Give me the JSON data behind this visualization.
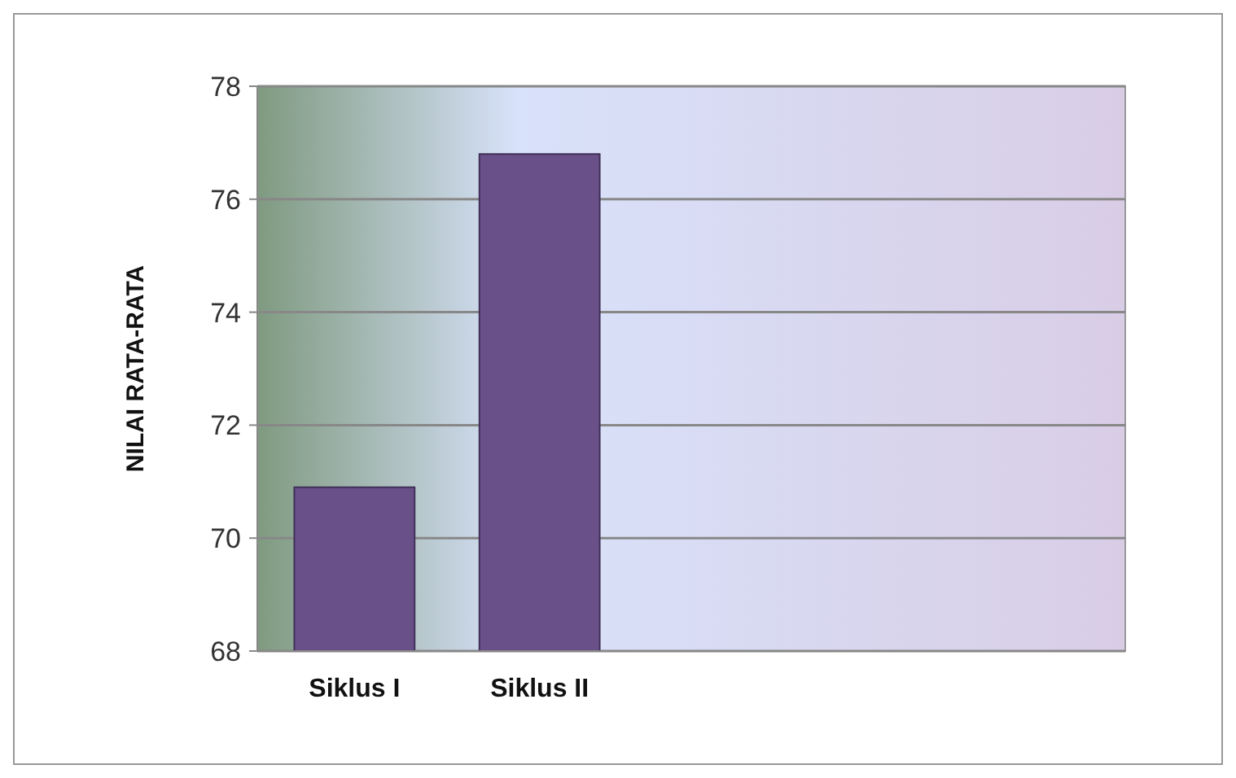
{
  "chart_data": {
    "type": "bar",
    "ylabel": "NILAI RATA-RATA",
    "categories": [
      "Siklus I",
      "Siklus II"
    ],
    "values": [
      70.9,
      76.8
    ],
    "color": "#6a5088",
    "ylim": [
      68,
      78
    ],
    "yticks": [
      68,
      70,
      72,
      74,
      76,
      78
    ],
    "grid": "y"
  }
}
